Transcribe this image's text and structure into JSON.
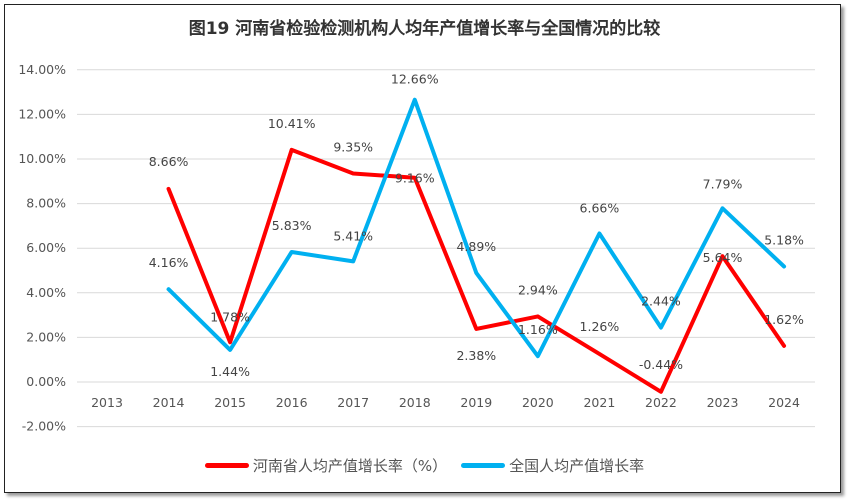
{
  "chart_data": {
    "type": "line",
    "title": "图19   河南省检验检测机构人均年产值增长率与全国情况的比较",
    "categories": [
      "2013",
      "2014",
      "2015",
      "2016",
      "2017",
      "2018",
      "2019",
      "2020",
      "2021",
      "2022",
      "2023",
      "2024"
    ],
    "ylim": [
      -2,
      14
    ],
    "yticks": [
      "-2.00%",
      "0.00%",
      "2.00%",
      "4.00%",
      "6.00%",
      "8.00%",
      "10.00%",
      "12.00%",
      "14.00%"
    ],
    "grid": true,
    "legend_position": "bottom",
    "series": [
      {
        "name": "河南省人均产值增长率（%）",
        "color": "#ff0000",
        "values": [
          null,
          8.66,
          1.78,
          10.41,
          9.35,
          9.16,
          2.38,
          2.94,
          1.26,
          -0.44,
          5.64,
          1.62
        ],
        "labels": [
          "",
          "8.66%",
          "1.78%",
          "10.41%",
          "9.35%",
          "9.16%",
          "2.38%",
          "2.94%",
          "1.26%",
          "-0.44%",
          "5.64%",
          "1.62%"
        ]
      },
      {
        "name": "全国人均产值增长率",
        "color": "#00b0f0",
        "values": [
          null,
          4.16,
          1.44,
          5.83,
          5.41,
          12.66,
          4.89,
          1.16,
          6.66,
          2.44,
          7.79,
          5.18
        ],
        "labels": [
          "",
          "4.16%",
          "1.44%",
          "5.83%",
          "5.41%",
          "12.66%",
          "4.89%",
          "1.16%",
          "6.66%",
          "2.44%",
          "7.79%",
          "5.18%"
        ]
      }
    ]
  }
}
